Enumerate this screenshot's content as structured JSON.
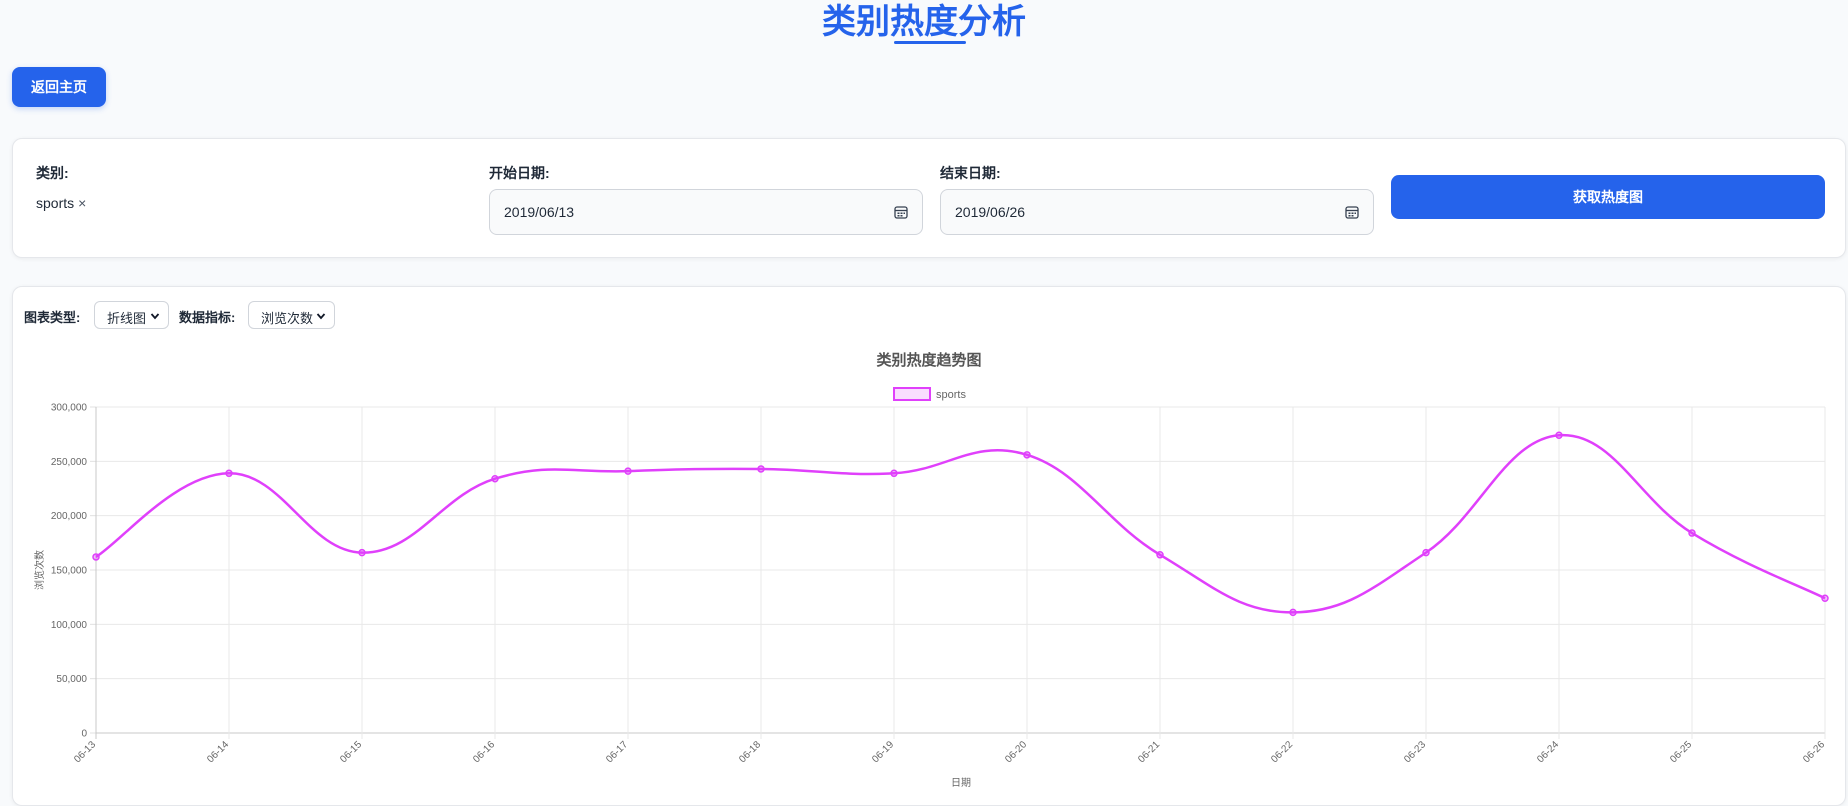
{
  "page": {
    "title": "类别热度分析",
    "back_label": "返回主页"
  },
  "filters": {
    "category_label": "类别:",
    "category_value": "sports",
    "category_remove": "×",
    "start_label": "开始日期:",
    "start_value": "2019/06/13",
    "end_label": "结束日期:",
    "end_value": "2019/06/26",
    "fetch_label": "获取热度图"
  },
  "controls": {
    "chart_type_label": "图表类型:",
    "chart_type_value": "折线图",
    "metric_label": "数据指标:",
    "metric_value": "浏览次数"
  },
  "colors": {
    "accent": "#2563eb",
    "series": "#e040fb"
  },
  "chart_data": {
    "type": "line",
    "title": "类别热度趋势图",
    "xlabel": "日期",
    "ylabel": "浏览次数",
    "categories": [
      "06-13",
      "06-14",
      "06-15",
      "06-16",
      "06-17",
      "06-18",
      "06-19",
      "06-20",
      "06-21",
      "06-22",
      "06-23",
      "06-24",
      "06-25",
      "06-26"
    ],
    "series": [
      {
        "name": "sports",
        "values": [
          162000,
          239000,
          166000,
          234000,
          241000,
          243000,
          239000,
          256000,
          164000,
          111000,
          166000,
          274000,
          184000,
          124000
        ]
      }
    ],
    "ylim": [
      0,
      300000
    ],
    "yticks": [
      0,
      50000,
      100000,
      150000,
      200000,
      250000,
      300000
    ],
    "ytick_labels": [
      "0",
      "50,000",
      "100,000",
      "150,000",
      "200,000",
      "250,000",
      "300,000"
    ],
    "grid": true,
    "legend_position": "top-center",
    "smooth": true
  }
}
